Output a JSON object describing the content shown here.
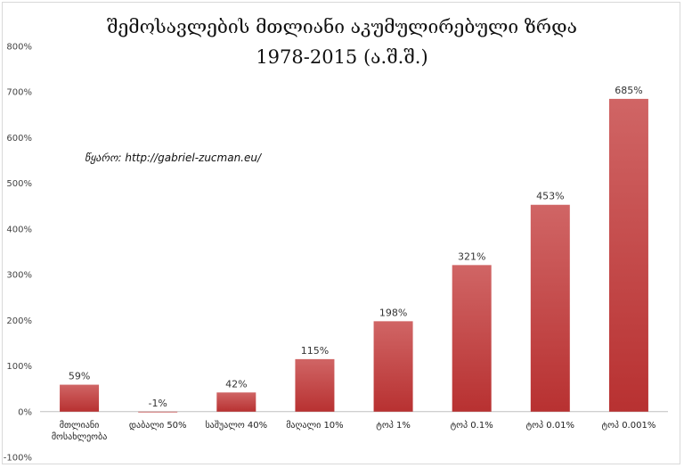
{
  "title_line1": "შემოსავლების მთლიანი აკუმულირებული ზრდა",
  "title_line2": "1978-2015 (ა.შ.შ.)",
  "source": "წყარო: http://gabriel-zucman.eu/",
  "chart_data": {
    "type": "bar",
    "title": "შემოსავლების მთლიანი აკუმულირებული ზრდა 1978-2015 (ა.შ.შ.)",
    "categories": [
      [
        "მთლიანი",
        "მოსახლეობა"
      ],
      [
        "დაბალი 50%"
      ],
      [
        "საშუალო 40%"
      ],
      [
        "მაღალი 10%"
      ],
      [
        "ტოპ 1%"
      ],
      [
        "ტოპ 0.1%"
      ],
      [
        "ტოპ  0.01%"
      ],
      [
        "ტოპ 0.001%"
      ]
    ],
    "values": [
      59,
      -1,
      42,
      115,
      198,
      321,
      453,
      685
    ],
    "data_labels": [
      "59%",
      "-1%",
      "42%",
      "115%",
      "198%",
      "321%",
      "453%",
      "685%"
    ],
    "ylim": [
      -100,
      800
    ],
    "yticks": [
      "-100%",
      "0%",
      "100%",
      "200%",
      "300%",
      "400%",
      "500%",
      "600%",
      "700%",
      "800%"
    ],
    "bar_color": "#c0403f",
    "grid": false,
    "legend": "none"
  }
}
